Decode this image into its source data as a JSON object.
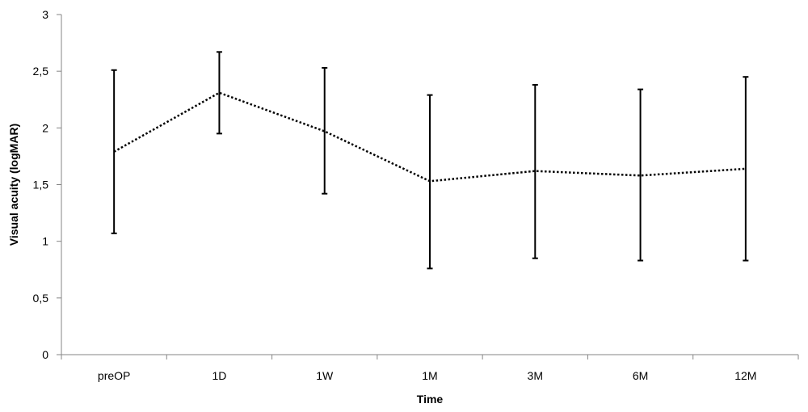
{
  "chart_data": {
    "type": "line",
    "xlabel": "Time",
    "ylabel": "Visual acuity  (logMAR)",
    "categories": [
      "preOP",
      "1D",
      "1W",
      "1M",
      "3M",
      "6M",
      "12M"
    ],
    "ylim": [
      0,
      3
    ],
    "yticks": [
      "0",
      "0,5",
      "1",
      "1,5",
      "2",
      "2,5",
      "3"
    ],
    "ytick_values": [
      0,
      0.5,
      1,
      1.5,
      2,
      2.5,
      3
    ],
    "grid": false,
    "line_style": "dotted",
    "colors": {
      "line": "#000000",
      "axis": "#868686",
      "error_bar": "#000000"
    },
    "series": [
      {
        "values": [
          1.79,
          2.31,
          1.97,
          1.53,
          1.62,
          1.58,
          1.64
        ],
        "error_low": [
          1.07,
          1.95,
          1.42,
          0.76,
          0.85,
          0.83,
          0.83
        ],
        "error_high": [
          2.51,
          2.67,
          2.53,
          2.29,
          2.38,
          2.34,
          2.45
        ]
      }
    ]
  }
}
